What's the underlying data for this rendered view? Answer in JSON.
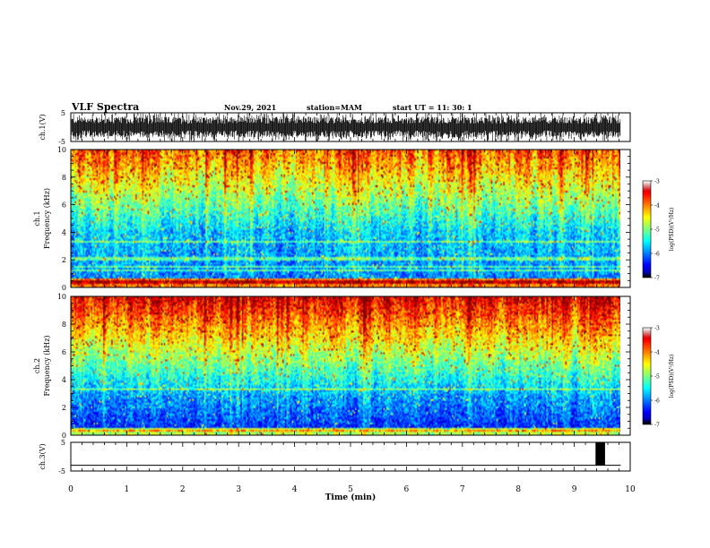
{
  "header": {
    "title": "VLF Spectra",
    "date": "Nov.29, 2021",
    "station": "station=MAM",
    "start_ut": "start  UT  =   11: 30: 1"
  },
  "chart_data": [
    {
      "type": "line",
      "name": "ch1-waveform",
      "ylabel": "ch.1(V)",
      "ylim": [
        -5,
        5
      ],
      "yticks": [
        "5",
        "-5"
      ],
      "xlim": [
        0,
        10
      ]
    },
    {
      "type": "heatmap",
      "name": "ch1-spectrogram",
      "ylabel": "ch.1\nFrequency (kHz)",
      "ylabel_lines": [
        "ch.1",
        "Frequency  (kHz)"
      ],
      "ylim": [
        0,
        10
      ],
      "yticks": [
        "0",
        "2",
        "4",
        "6",
        "8",
        "10"
      ],
      "xlim": [
        0,
        10
      ],
      "data_end_min": 9.83,
      "colorbar": {
        "label": "log(PSD)(V²/Hz)",
        "range": [
          -7,
          -3
        ],
        "ticks": [
          "-3",
          "-4",
          "-5",
          "-6",
          "-7"
        ]
      }
    },
    {
      "type": "heatmap",
      "name": "ch2-spectrogram",
      "ylabel": "ch.2\nFrequency (kHz)",
      "ylabel_lines": [
        "ch.2",
        "Frequency  (kHz)"
      ],
      "ylim": [
        0,
        10
      ],
      "yticks": [
        "0",
        "2",
        "4",
        "6",
        "8",
        "10"
      ],
      "xlim": [
        0,
        10
      ],
      "data_end_min": 9.83,
      "colorbar": {
        "label": "log(PSD)(V²/Hz)",
        "range": [
          -7,
          -3
        ],
        "ticks": [
          "-3",
          "-4",
          "-5",
          "-6",
          "-7"
        ]
      }
    },
    {
      "type": "line",
      "name": "ch3-waveform",
      "ylabel": "ch.3(V)",
      "ylim": [
        -5,
        5
      ],
      "yticks": [
        "5",
        "-5"
      ],
      "xlim": [
        0,
        10
      ],
      "baseline_v": -3,
      "pulse": {
        "x_start": 9.38,
        "x_end": 9.55,
        "v_low": -3,
        "v_high": 5
      }
    }
  ],
  "xaxis": {
    "label": "Time  (min)",
    "ticks": [
      "0",
      "1",
      "2",
      "3",
      "4",
      "5",
      "6",
      "7",
      "8",
      "9",
      "10"
    ]
  }
}
